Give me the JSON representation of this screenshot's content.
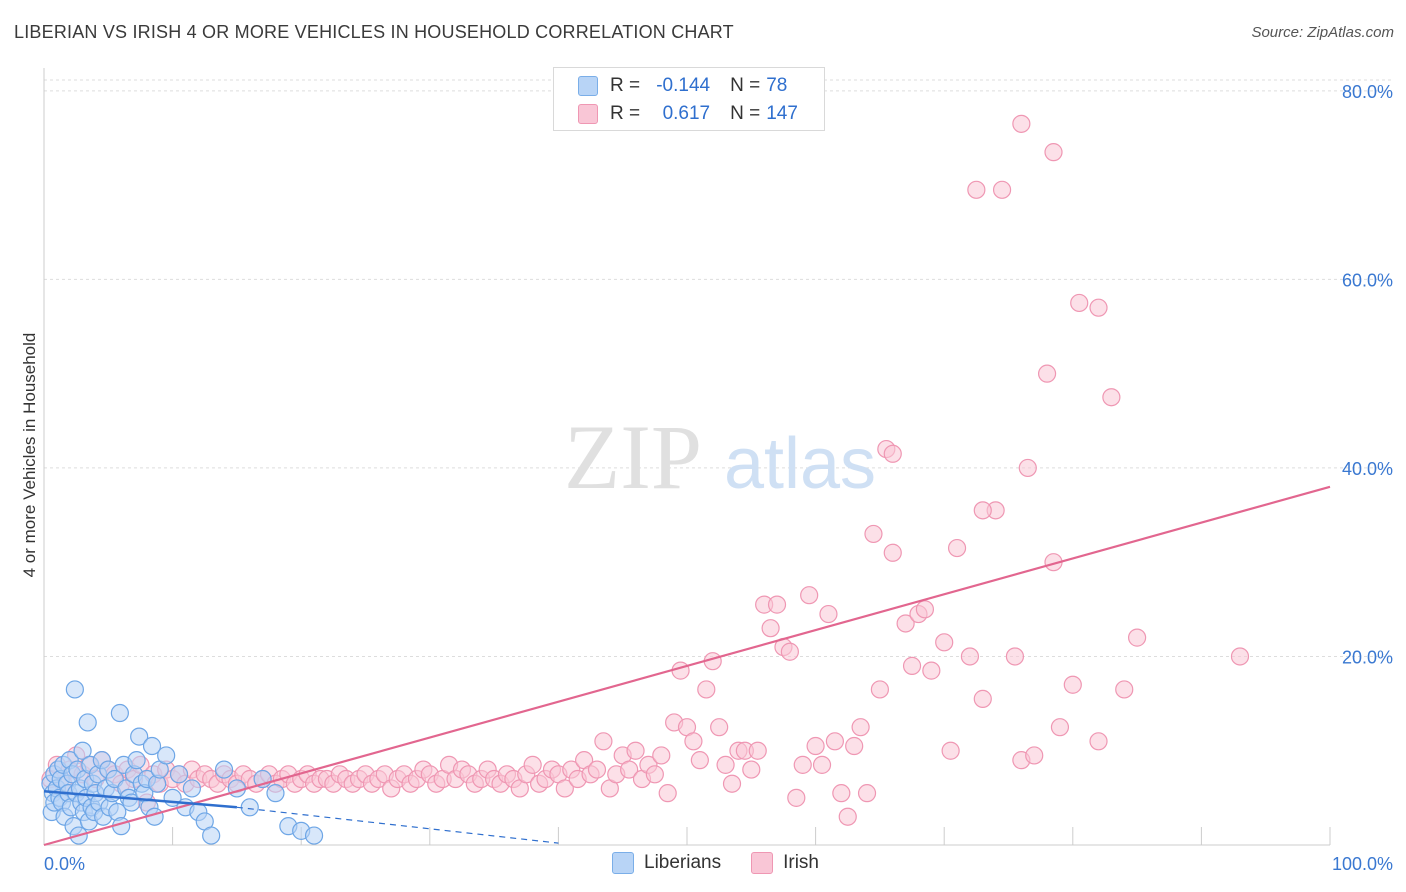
{
  "header": {
    "title": "LIBERIAN VS IRISH 4 OR MORE VEHICLES IN HOUSEHOLD CORRELATION CHART",
    "source": "Source: ZipAtlas.com"
  },
  "legend": {
    "rows": [
      {
        "r_label": "R =",
        "r_value": "-0.144",
        "n_label": "N =",
        "n_value": "78"
      },
      {
        "r_label": "R =",
        "r_value": "0.617",
        "n_label": "N =",
        "n_value": "147"
      }
    ]
  },
  "bottom_legend": {
    "series1": "Liberians",
    "series2": "Irish"
  },
  "watermark": {
    "zip": "ZIP",
    "atlas": "atlas"
  },
  "colors": {
    "blue_fill": "#b8d4f6",
    "blue_stroke": "#6ea6e6",
    "blue_line": "#2f6fce",
    "pink_fill": "#f9c6d6",
    "pink_stroke": "#ef97b3",
    "pink_line": "#e2668f",
    "axis_label": "#3a78d1",
    "grid": "#dddddd"
  },
  "chart_data": {
    "type": "scatter",
    "title": "LIBERIAN VS IRISH 4 OR MORE VEHICLES IN HOUSEHOLD CORRELATION CHART",
    "xlabel": "",
    "ylabel": "4 or more Vehicles in Household",
    "xlim": [
      0,
      100
    ],
    "ylim": [
      0,
      82
    ],
    "x_tick_labels": [
      "0.0%",
      "100.0%"
    ],
    "y_ticks": [
      20,
      40,
      60,
      80
    ],
    "y_tick_labels": [
      "20.0%",
      "40.0%",
      "60.0%",
      "80.0%"
    ],
    "grid": true,
    "legend_position": "top-center",
    "series": [
      {
        "name": "Liberians",
        "R": -0.144,
        "N": 78,
        "trend": {
          "x": [
            0,
            15
          ],
          "y": [
            5.7,
            4.0
          ]
        },
        "trend_extension": {
          "x": [
            15,
            40
          ],
          "y": [
            4.0,
            0.2
          ]
        },
        "points": [
          [
            0.5,
            6.5
          ],
          [
            0.6,
            3.5
          ],
          [
            0.7,
            5.5
          ],
          [
            0.8,
            7.5
          ],
          [
            0.8,
            4.5
          ],
          [
            1.0,
            6.0
          ],
          [
            1.1,
            8.0
          ],
          [
            1.2,
            5.0
          ],
          [
            1.3,
            7.0
          ],
          [
            1.4,
            4.5
          ],
          [
            1.5,
            8.5
          ],
          [
            1.6,
            3.0
          ],
          [
            1.8,
            6.5
          ],
          [
            1.9,
            5.5
          ],
          [
            2.0,
            9.0
          ],
          [
            2.1,
            4.0
          ],
          [
            2.2,
            7.5
          ],
          [
            2.3,
            2.0
          ],
          [
            2.4,
            16.5
          ],
          [
            2.5,
            5.5
          ],
          [
            2.6,
            8.0
          ],
          [
            2.7,
            1.0
          ],
          [
            2.8,
            6.0
          ],
          [
            2.9,
            4.5
          ],
          [
            3.0,
            10.0
          ],
          [
            3.1,
            3.5
          ],
          [
            3.2,
            7.0
          ],
          [
            3.3,
            5.0
          ],
          [
            3.4,
            13.0
          ],
          [
            3.5,
            2.5
          ],
          [
            3.6,
            8.5
          ],
          [
            3.7,
            4.0
          ],
          [
            3.8,
            6.5
          ],
          [
            3.9,
            3.5
          ],
          [
            4.0,
            5.5
          ],
          [
            4.2,
            7.5
          ],
          [
            4.3,
            4.5
          ],
          [
            4.5,
            9.0
          ],
          [
            4.6,
            3.0
          ],
          [
            4.8,
            6.0
          ],
          [
            5.0,
            8.0
          ],
          [
            5.1,
            4.0
          ],
          [
            5.3,
            5.5
          ],
          [
            5.5,
            7.0
          ],
          [
            5.7,
            3.5
          ],
          [
            5.9,
            14.0
          ],
          [
            6.0,
            2.0
          ],
          [
            6.2,
            8.5
          ],
          [
            6.4,
            6.0
          ],
          [
            6.6,
            5.0
          ],
          [
            6.8,
            4.5
          ],
          [
            7.0,
            7.5
          ],
          [
            7.2,
            9.0
          ],
          [
            7.4,
            11.5
          ],
          [
            7.6,
            6.5
          ],
          [
            7.8,
            5.5
          ],
          [
            8.0,
            7.0
          ],
          [
            8.2,
            4.0
          ],
          [
            8.4,
            10.5
          ],
          [
            8.6,
            3.0
          ],
          [
            8.8,
            6.5
          ],
          [
            9.0,
            8.0
          ],
          [
            9.5,
            9.5
          ],
          [
            10.0,
            5.0
          ],
          [
            10.5,
            7.5
          ],
          [
            11.0,
            4.0
          ],
          [
            11.5,
            6.0
          ],
          [
            12.0,
            3.5
          ],
          [
            12.5,
            2.5
          ],
          [
            13.0,
            1.0
          ],
          [
            14.0,
            8.0
          ],
          [
            15.0,
            6.0
          ],
          [
            16.0,
            4.0
          ],
          [
            17.0,
            7.0
          ],
          [
            18.0,
            5.5
          ],
          [
            19.0,
            2.0
          ],
          [
            20.0,
            1.5
          ],
          [
            21.0,
            1.0
          ]
        ]
      },
      {
        "name": "Irish",
        "R": 0.617,
        "N": 147,
        "trend": {
          "x": [
            0,
            100
          ],
          "y": [
            0.0,
            38.0
          ]
        },
        "points": [
          [
            0.5,
            7.0
          ],
          [
            1.0,
            8.5
          ],
          [
            1.5,
            6.5
          ],
          [
            2.0,
            8.0
          ],
          [
            2.5,
            9.5
          ],
          [
            3.0,
            7.5
          ],
          [
            3.5,
            8.5
          ],
          [
            4.0,
            7.0
          ],
          [
            4.5,
            9.0
          ],
          [
            5.0,
            8.0
          ],
          [
            5.5,
            7.5
          ],
          [
            6.0,
            6.5
          ],
          [
            6.5,
            8.0
          ],
          [
            7.0,
            7.0
          ],
          [
            7.5,
            8.5
          ],
          [
            8.0,
            4.5
          ],
          [
            8.5,
            7.5
          ],
          [
            9.0,
            6.5
          ],
          [
            9.5,
            8.0
          ],
          [
            10.0,
            7.0
          ],
          [
            10.5,
            7.5
          ],
          [
            11.0,
            6.5
          ],
          [
            11.5,
            8.0
          ],
          [
            12.0,
            7.0
          ],
          [
            12.5,
            7.5
          ],
          [
            13.0,
            7.0
          ],
          [
            13.5,
            6.5
          ],
          [
            14.0,
            7.5
          ],
          [
            14.5,
            7.0
          ],
          [
            15.0,
            6.5
          ],
          [
            15.5,
            7.5
          ],
          [
            16.0,
            7.0
          ],
          [
            16.5,
            6.5
          ],
          [
            17.0,
            7.0
          ],
          [
            17.5,
            7.5
          ],
          [
            18.0,
            6.5
          ],
          [
            18.5,
            7.0
          ],
          [
            19.0,
            7.5
          ],
          [
            19.5,
            6.5
          ],
          [
            20.0,
            7.0
          ],
          [
            20.5,
            7.5
          ],
          [
            21.0,
            6.5
          ],
          [
            21.5,
            7.0
          ],
          [
            22.0,
            7.0
          ],
          [
            22.5,
            6.5
          ],
          [
            23.0,
            7.5
          ],
          [
            23.5,
            7.0
          ],
          [
            24.0,
            6.5
          ],
          [
            24.5,
            7.0
          ],
          [
            25.0,
            7.5
          ],
          [
            25.5,
            6.5
          ],
          [
            26.0,
            7.0
          ],
          [
            26.5,
            7.5
          ],
          [
            27.0,
            6.0
          ],
          [
            27.5,
            7.0
          ],
          [
            28.0,
            7.5
          ],
          [
            28.5,
            6.5
          ],
          [
            29.0,
            7.0
          ],
          [
            29.5,
            8.0
          ],
          [
            30.0,
            7.5
          ],
          [
            30.5,
            6.5
          ],
          [
            31.0,
            7.0
          ],
          [
            31.5,
            8.5
          ],
          [
            32.0,
            7.0
          ],
          [
            32.5,
            8.0
          ],
          [
            33.0,
            7.5
          ],
          [
            33.5,
            6.5
          ],
          [
            34.0,
            7.0
          ],
          [
            34.5,
            8.0
          ],
          [
            35.0,
            7.0
          ],
          [
            35.5,
            6.5
          ],
          [
            36.0,
            7.5
          ],
          [
            36.5,
            7.0
          ],
          [
            37.0,
            6.0
          ],
          [
            37.5,
            7.5
          ],
          [
            38.0,
            8.5
          ],
          [
            38.5,
            6.5
          ],
          [
            39.0,
            7.0
          ],
          [
            39.5,
            8.0
          ],
          [
            40.0,
            7.5
          ],
          [
            40.5,
            6.0
          ],
          [
            41.0,
            8.0
          ],
          [
            41.5,
            7.0
          ],
          [
            42.0,
            9.0
          ],
          [
            42.5,
            7.5
          ],
          [
            43.0,
            8.0
          ],
          [
            43.5,
            11.0
          ],
          [
            44.0,
            6.0
          ],
          [
            44.5,
            7.5
          ],
          [
            45.0,
            9.5
          ],
          [
            45.5,
            8.0
          ],
          [
            46.0,
            10.0
          ],
          [
            46.5,
            7.0
          ],
          [
            47.0,
            8.5
          ],
          [
            47.5,
            7.5
          ],
          [
            48.0,
            9.5
          ],
          [
            48.5,
            5.5
          ],
          [
            49.0,
            13.0
          ],
          [
            49.5,
            18.5
          ],
          [
            50.0,
            12.5
          ],
          [
            50.5,
            11.0
          ],
          [
            51.0,
            9.0
          ],
          [
            51.5,
            16.5
          ],
          [
            52.0,
            19.5
          ],
          [
            52.5,
            12.5
          ],
          [
            53.0,
            8.5
          ],
          [
            53.5,
            6.5
          ],
          [
            54.0,
            10.0
          ],
          [
            54.5,
            10.0
          ],
          [
            55.0,
            8.0
          ],
          [
            55.5,
            10.0
          ],
          [
            56.0,
            25.5
          ],
          [
            56.5,
            23.0
          ],
          [
            57.0,
            25.5
          ],
          [
            57.5,
            21.0
          ],
          [
            58.0,
            20.5
          ],
          [
            58.5,
            5.0
          ],
          [
            59.0,
            8.5
          ],
          [
            59.5,
            26.5
          ],
          [
            60.0,
            10.5
          ],
          [
            60.5,
            8.5
          ],
          [
            61.0,
            24.5
          ],
          [
            61.5,
            11.0
          ],
          [
            62.0,
            5.5
          ],
          [
            62.5,
            3.0
          ],
          [
            63.0,
            10.5
          ],
          [
            63.5,
            12.5
          ],
          [
            64.0,
            5.5
          ],
          [
            64.5,
            33.0
          ],
          [
            65.0,
            16.5
          ],
          [
            65.5,
            42.0
          ],
          [
            66.0,
            31.0
          ],
          [
            67.0,
            23.5
          ],
          [
            67.5,
            19.0
          ],
          [
            68.0,
            24.5
          ],
          [
            68.5,
            25.0
          ],
          [
            69.0,
            18.5
          ],
          [
            70.0,
            21.5
          ],
          [
            70.5,
            10.0
          ],
          [
            71.0,
            31.5
          ],
          [
            72.0,
            20.0
          ],
          [
            73.0,
            15.5
          ],
          [
            74.0,
            35.5
          ],
          [
            75.5,
            20.0
          ],
          [
            76.0,
            9.0
          ],
          [
            77.0,
            9.5
          ],
          [
            78.5,
            30.0
          ],
          [
            79.0,
            12.5
          ],
          [
            80.0,
            17.0
          ],
          [
            82.0,
            11.0
          ],
          [
            84.0,
            16.5
          ],
          [
            85.0,
            22.0
          ],
          [
            93.0,
            20.0
          ],
          [
            72.5,
            69.5
          ],
          [
            74.5,
            69.5
          ],
          [
            76.0,
            76.5
          ],
          [
            78.5,
            73.5
          ],
          [
            80.5,
            57.5
          ],
          [
            82.0,
            57.0
          ],
          [
            78.0,
            50.0
          ],
          [
            83.0,
            47.5
          ],
          [
            76.5,
            40.0
          ],
          [
            73.0,
            35.5
          ],
          [
            66.0,
            41.5
          ]
        ]
      }
    ]
  }
}
